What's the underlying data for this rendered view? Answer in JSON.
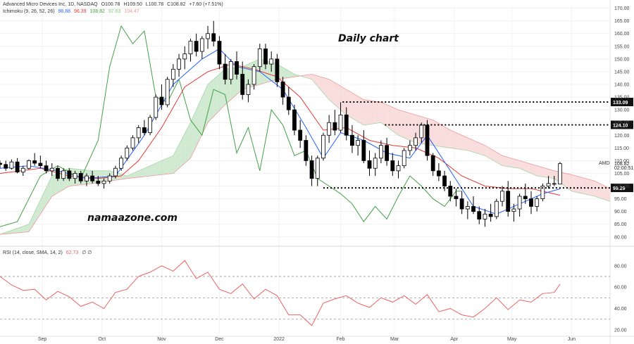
{
  "header": {
    "symbol_line": "Advanced Micro Devices Inc, 1D, NASDAQ",
    "open": "O100.78",
    "high": "H109.50",
    "low": "L100.78",
    "close": "C108.82",
    "change": "+7.60 (+7.51%)",
    "ichimoku_label": "Ichimoku (9, 26, 52, 26)",
    "ichimoku_values": [
      {
        "value": "98.88",
        "color": "#2962ff"
      },
      {
        "value": "96.39",
        "color": "#e53935"
      },
      {
        "value": "108.82",
        "color": "#43a047"
      },
      {
        "value": "97.63",
        "color": "#81c784"
      },
      {
        "value": "104.47",
        "color": "#ef9a9a"
      }
    ],
    "rsi_label": "RSI (14, close, SMA, 14, 2)",
    "rsi_value": "62.73",
    "rsi_extra": "∅ ∅"
  },
  "annotations": {
    "title": "Daily chart",
    "watermark": "namaazone.com"
  },
  "colors": {
    "candle": "#000000",
    "tenkan": "#2962ff",
    "kijun": "#e53935",
    "chikou": "#43a047",
    "cloud_bull": "#c8e6c9",
    "cloud_bear": "#f8d7d7",
    "rsi": "#f06262",
    "level_line": "#000000"
  },
  "chart_data": {
    "type": "candlestick",
    "symbol": "AMD",
    "price_axis": {
      "ticks": [
        "170.00",
        "165.00",
        "160.00",
        "155.00",
        "150.00",
        "145.00",
        "140.00",
        "135.00",
        "130.00",
        "125.00",
        "120.00",
        "115.00",
        "110.00",
        "105.00",
        "100.00",
        "95.00",
        "90.00",
        "85.00",
        "80.00"
      ],
      "ylim": [
        78,
        171
      ],
      "last_price": "108.82",
      "countdown": "02:00:51"
    },
    "rsi_axis": {
      "ticks": [
        "80.00",
        "60.00",
        "40.00",
        "20.00"
      ],
      "ylim": [
        16,
        93
      ],
      "levels": [
        70,
        50,
        30
      ]
    },
    "months": [
      {
        "label": "Sep",
        "day": 22
      },
      {
        "label": "Oct",
        "day": 53
      },
      {
        "label": "Nov",
        "day": 84
      },
      {
        "label": "Dec",
        "day": 114
      },
      {
        "label": "2022",
        "day": 145
      },
      {
        "label": "Feb",
        "day": 177
      },
      {
        "label": "Mar",
        "day": 205
      },
      {
        "label": "Apr",
        "day": 236
      },
      {
        "label": "May",
        "day": 266
      },
      {
        "label": "Jun",
        "day": 297
      }
    ],
    "price_levels": [
      {
        "label": "133.09",
        "value": 133.09,
        "from_day": 178
      },
      {
        "label": "124.10",
        "value": 124.1,
        "from_day": 200
      },
      {
        "label": "99.29",
        "value": 99.29,
        "from_day": 168
      }
    ],
    "candles": [
      [
        0,
        109,
        110,
        107,
        108.5
      ],
      [
        3,
        108.5,
        110,
        106,
        107
      ],
      [
        6,
        107,
        110.5,
        106.5,
        109.5
      ],
      [
        9,
        109.5,
        111,
        105,
        105.5
      ],
      [
        12,
        105.5,
        108,
        104,
        107
      ],
      [
        15,
        107,
        110.5,
        106.5,
        110
      ],
      [
        18,
        110,
        113,
        108,
        109
      ],
      [
        21,
        109,
        112,
        107,
        108
      ],
      [
        24,
        108,
        110,
        105,
        106
      ],
      [
        27,
        106,
        109,
        104,
        107
      ],
      [
        30,
        107,
        108,
        102,
        103
      ],
      [
        33,
        103,
        107,
        102,
        106
      ],
      [
        36,
        106,
        107,
        102,
        103
      ],
      [
        39,
        103,
        106,
        101,
        105
      ],
      [
        42,
        105,
        106,
        101,
        102
      ],
      [
        45,
        102,
        105,
        100,
        104
      ],
      [
        48,
        104,
        106,
        101,
        102
      ],
      [
        51,
        102,
        104,
        100,
        101
      ],
      [
        54,
        101,
        103,
        99,
        102
      ],
      [
        57,
        102,
        105,
        101,
        104
      ],
      [
        60,
        104,
        108,
        103,
        107
      ],
      [
        63,
        107,
        112,
        106,
        111
      ],
      [
        66,
        111,
        116,
        110,
        115
      ],
      [
        69,
        115,
        120,
        114,
        119
      ],
      [
        72,
        119,
        124,
        117,
        123
      ],
      [
        75,
        123,
        126,
        120,
        121
      ],
      [
        78,
        121,
        128,
        120,
        127
      ],
      [
        81,
        127,
        136,
        126,
        135
      ],
      [
        84,
        135,
        140,
        130,
        132
      ],
      [
        87,
        132,
        143,
        131,
        142
      ],
      [
        90,
        142,
        148,
        139,
        146
      ],
      [
        93,
        146,
        152,
        143,
        150
      ],
      [
        96,
        150,
        155,
        146,
        152
      ],
      [
        99,
        152,
        158,
        149,
        157
      ],
      [
        102,
        157,
        160,
        151,
        153
      ],
      [
        105,
        153,
        159,
        150,
        158
      ],
      [
        108,
        158,
        163,
        154,
        160
      ],
      [
        111,
        160,
        165,
        155,
        157
      ],
      [
        114,
        157,
        159,
        146,
        148
      ],
      [
        117,
        148,
        152,
        140,
        142
      ],
      [
        120,
        142,
        150,
        140,
        149
      ],
      [
        123,
        149,
        153,
        142,
        144
      ],
      [
        126,
        144,
        149,
        134,
        136
      ],
      [
        129,
        136,
        142,
        133,
        140
      ],
      [
        132,
        140,
        148,
        138,
        147
      ],
      [
        135,
        147,
        156,
        145,
        154
      ],
      [
        138,
        154,
        156,
        146,
        148
      ],
      [
        141,
        148,
        153,
        145,
        150
      ],
      [
        144,
        150,
        152,
        139,
        141
      ],
      [
        147,
        141,
        143,
        132,
        135
      ],
      [
        150,
        135,
        139,
        128,
        130
      ],
      [
        153,
        130,
        132,
        120,
        122
      ],
      [
        156,
        122,
        126,
        115,
        118
      ],
      [
        159,
        118,
        120,
        108,
        110
      ],
      [
        162,
        110,
        112,
        100,
        103
      ],
      [
        165,
        103,
        112,
        100,
        111
      ],
      [
        168,
        111,
        121,
        110,
        120
      ],
      [
        171,
        120,
        128,
        117,
        125
      ],
      [
        174,
        125,
        130,
        120,
        122
      ],
      [
        177,
        122,
        133,
        121,
        128
      ],
      [
        180,
        128,
        131,
        118,
        120
      ],
      [
        183,
        120,
        124,
        113,
        116
      ],
      [
        186,
        116,
        120,
        112,
        118
      ],
      [
        189,
        118,
        122,
        109,
        110
      ],
      [
        192,
        110,
        114,
        104,
        107
      ],
      [
        195,
        107,
        113,
        104,
        111
      ],
      [
        198,
        111,
        118,
        109,
        116
      ],
      [
        201,
        116,
        119,
        108,
        110
      ],
      [
        204,
        110,
        113,
        104,
        106
      ],
      [
        207,
        106,
        110,
        103,
        108
      ],
      [
        210,
        108,
        115,
        107,
        114
      ],
      [
        213,
        114,
        118,
        112,
        116
      ],
      [
        216,
        116,
        121,
        114,
        119
      ],
      [
        219,
        119,
        125,
        117,
        124
      ],
      [
        222,
        124,
        126,
        110,
        112
      ],
      [
        225,
        112,
        113,
        104,
        106
      ],
      [
        228,
        106,
        109,
        102,
        104
      ],
      [
        231,
        104,
        106,
        98,
        100
      ],
      [
        234,
        100,
        102,
        94,
        96
      ],
      [
        237,
        96,
        99,
        92,
        95
      ],
      [
        240,
        95,
        98,
        89,
        91
      ],
      [
        243,
        91,
        94,
        87,
        92
      ],
      [
        246,
        92,
        96,
        89,
        90
      ],
      [
        249,
        90,
        92,
        85,
        87
      ],
      [
        252,
        87,
        91,
        84,
        89
      ],
      [
        255,
        89,
        93,
        86,
        88
      ],
      [
        258,
        88,
        95,
        87,
        94
      ],
      [
        261,
        94,
        100,
        92,
        98
      ],
      [
        264,
        98,
        102,
        88,
        90
      ],
      [
        267,
        90,
        93,
        86,
        91
      ],
      [
        270,
        91,
        97,
        88,
        96
      ],
      [
        273,
        96,
        101,
        93,
        95
      ],
      [
        276,
        95,
        98,
        89,
        92
      ],
      [
        279,
        92,
        96,
        90,
        95
      ],
      [
        282,
        95,
        101,
        94,
        100
      ],
      [
        285,
        100,
        104,
        99,
        101
      ],
      [
        288,
        101,
        104,
        100,
        101
      ],
      [
        291,
        100.78,
        109.5,
        100.78,
        108.82
      ]
    ],
    "tenkan": [
      [
        0,
        107
      ],
      [
        15,
        108
      ],
      [
        30,
        106
      ],
      [
        45,
        103
      ],
      [
        60,
        104
      ],
      [
        75,
        120
      ],
      [
        90,
        140
      ],
      [
        105,
        150
      ],
      [
        114,
        154
      ],
      [
        123,
        147
      ],
      [
        135,
        145
      ],
      [
        147,
        138
      ],
      [
        159,
        123
      ],
      [
        168,
        111
      ],
      [
        177,
        121
      ],
      [
        189,
        118
      ],
      [
        201,
        113
      ],
      [
        213,
        111
      ],
      [
        222,
        120
      ],
      [
        234,
        106
      ],
      [
        246,
        92
      ],
      [
        258,
        89
      ],
      [
        270,
        93
      ],
      [
        282,
        97
      ],
      [
        291,
        98.9
      ]
    ],
    "kijun": [
      [
        0,
        105
      ],
      [
        21,
        107
      ],
      [
        36,
        104
      ],
      [
        51,
        103
      ],
      [
        63,
        104
      ],
      [
        72,
        110
      ],
      [
        84,
        123
      ],
      [
        96,
        139
      ],
      [
        108,
        145
      ],
      [
        120,
        148
      ],
      [
        132,
        146
      ],
      [
        144,
        143
      ],
      [
        156,
        135
      ],
      [
        168,
        122
      ],
      [
        180,
        123
      ],
      [
        192,
        118
      ],
      [
        204,
        116
      ],
      [
        216,
        115
      ],
      [
        228,
        111
      ],
      [
        240,
        104
      ],
      [
        252,
        100
      ],
      [
        264,
        99
      ],
      [
        276,
        99
      ],
      [
        291,
        96.4
      ]
    ],
    "chikou": [
      [
        0,
        84
      ],
      [
        9,
        86
      ],
      [
        21,
        104
      ],
      [
        30,
        108
      ],
      [
        42,
        103
      ],
      [
        51,
        118
      ],
      [
        57,
        147
      ],
      [
        63,
        163
      ],
      [
        69,
        156
      ],
      [
        75,
        161
      ],
      [
        81,
        135
      ],
      [
        87,
        133
      ],
      [
        93,
        142
      ],
      [
        99,
        126
      ],
      [
        105,
        120
      ],
      [
        111,
        138
      ],
      [
        117,
        136
      ],
      [
        123,
        113
      ],
      [
        129,
        123
      ],
      [
        135,
        106
      ],
      [
        141,
        130
      ],
      [
        147,
        124
      ],
      [
        153,
        112
      ],
      [
        159,
        114
      ],
      [
        165,
        103
      ],
      [
        171,
        100
      ],
      [
        177,
        97
      ],
      [
        183,
        93
      ],
      [
        189,
        86
      ],
      [
        195,
        92
      ],
      [
        201,
        87
      ],
      [
        207,
        96
      ],
      [
        213,
        104
      ],
      [
        219,
        100
      ],
      [
        225,
        95
      ],
      [
        231,
        92
      ],
      [
        237,
        98
      ],
      [
        240,
        98
      ]
    ],
    "cloud": {
      "span_a": [
        [
          0,
          81
        ],
        [
          15,
          85
        ],
        [
          27,
          104
        ],
        [
          36,
          107
        ],
        [
          48,
          106
        ],
        [
          57,
          106
        ],
        [
          66,
          104
        ],
        [
          78,
          108
        ],
        [
          90,
          112
        ],
        [
          99,
          125
        ],
        [
          108,
          140
        ],
        [
          117,
          146
        ],
        [
          126,
          147
        ],
        [
          135,
          150
        ],
        [
          144,
          148
        ],
        [
          153,
          144
        ],
        [
          162,
          142
        ],
        [
          171,
          134
        ],
        [
          180,
          128
        ],
        [
          189,
          124
        ],
        [
          198,
          125
        ],
        [
          207,
          120
        ],
        [
          216,
          117
        ],
        [
          225,
          116
        ],
        [
          234,
          115
        ],
        [
          243,
          114
        ],
        [
          252,
          112
        ],
        [
          261,
          108
        ],
        [
          270,
          107
        ],
        [
          279,
          104
        ],
        [
          288,
          103
        ],
        [
          297,
          98
        ],
        [
          309,
          96
        ],
        [
          317,
          94
        ]
      ],
      "span_b": [
        [
          0,
          81
        ],
        [
          15,
          82
        ],
        [
          27,
          96
        ],
        [
          36,
          100
        ],
        [
          48,
          101
        ],
        [
          57,
          102
        ],
        [
          66,
          103
        ],
        [
          78,
          104
        ],
        [
          90,
          105
        ],
        [
          99,
          111
        ],
        [
          108,
          125
        ],
        [
          117,
          132
        ],
        [
          126,
          138
        ],
        [
          135,
          140
        ],
        [
          144,
          142
        ],
        [
          153,
          143
        ],
        [
          162,
          144
        ],
        [
          171,
          142
        ],
        [
          180,
          138
        ],
        [
          189,
          134
        ],
        [
          198,
          133
        ],
        [
          207,
          130
        ],
        [
          216,
          128
        ],
        [
          225,
          126
        ],
        [
          234,
          122
        ],
        [
          243,
          119
        ],
        [
          252,
          116
        ],
        [
          261,
          112
        ],
        [
          270,
          110
        ],
        [
          279,
          108
        ],
        [
          288,
          106
        ],
        [
          297,
          104.5
        ],
        [
          309,
          102
        ],
        [
          317,
          99
        ]
      ]
    },
    "rsi": [
      [
        0,
        70
      ],
      [
        6,
        62
      ],
      [
        12,
        57
      ],
      [
        18,
        58
      ],
      [
        24,
        48
      ],
      [
        30,
        56
      ],
      [
        36,
        51
      ],
      [
        42,
        42
      ],
      [
        48,
        46
      ],
      [
        54,
        40
      ],
      [
        60,
        55
      ],
      [
        66,
        58
      ],
      [
        72,
        70
      ],
      [
        78,
        74
      ],
      [
        84,
        80
      ],
      [
        90,
        75
      ],
      [
        96,
        85
      ],
      [
        102,
        68
      ],
      [
        108,
        74
      ],
      [
        114,
        58
      ],
      [
        120,
        54
      ],
      [
        126,
        63
      ],
      [
        132,
        49
      ],
      [
        138,
        58
      ],
      [
        144,
        52
      ],
      [
        150,
        34
      ],
      [
        156,
        34
      ],
      [
        162,
        24
      ],
      [
        168,
        45
      ],
      [
        174,
        49
      ],
      [
        180,
        52
      ],
      [
        186,
        45
      ],
      [
        192,
        41
      ],
      [
        198,
        50
      ],
      [
        204,
        46
      ],
      [
        210,
        52
      ],
      [
        216,
        44
      ],
      [
        222,
        53
      ],
      [
        228,
        37
      ],
      [
        234,
        40
      ],
      [
        240,
        34
      ],
      [
        246,
        32
      ],
      [
        252,
        40
      ],
      [
        258,
        50
      ],
      [
        264,
        39
      ],
      [
        270,
        48
      ],
      [
        276,
        46
      ],
      [
        282,
        54
      ],
      [
        288,
        55
      ],
      [
        291,
        62.7
      ]
    ]
  }
}
